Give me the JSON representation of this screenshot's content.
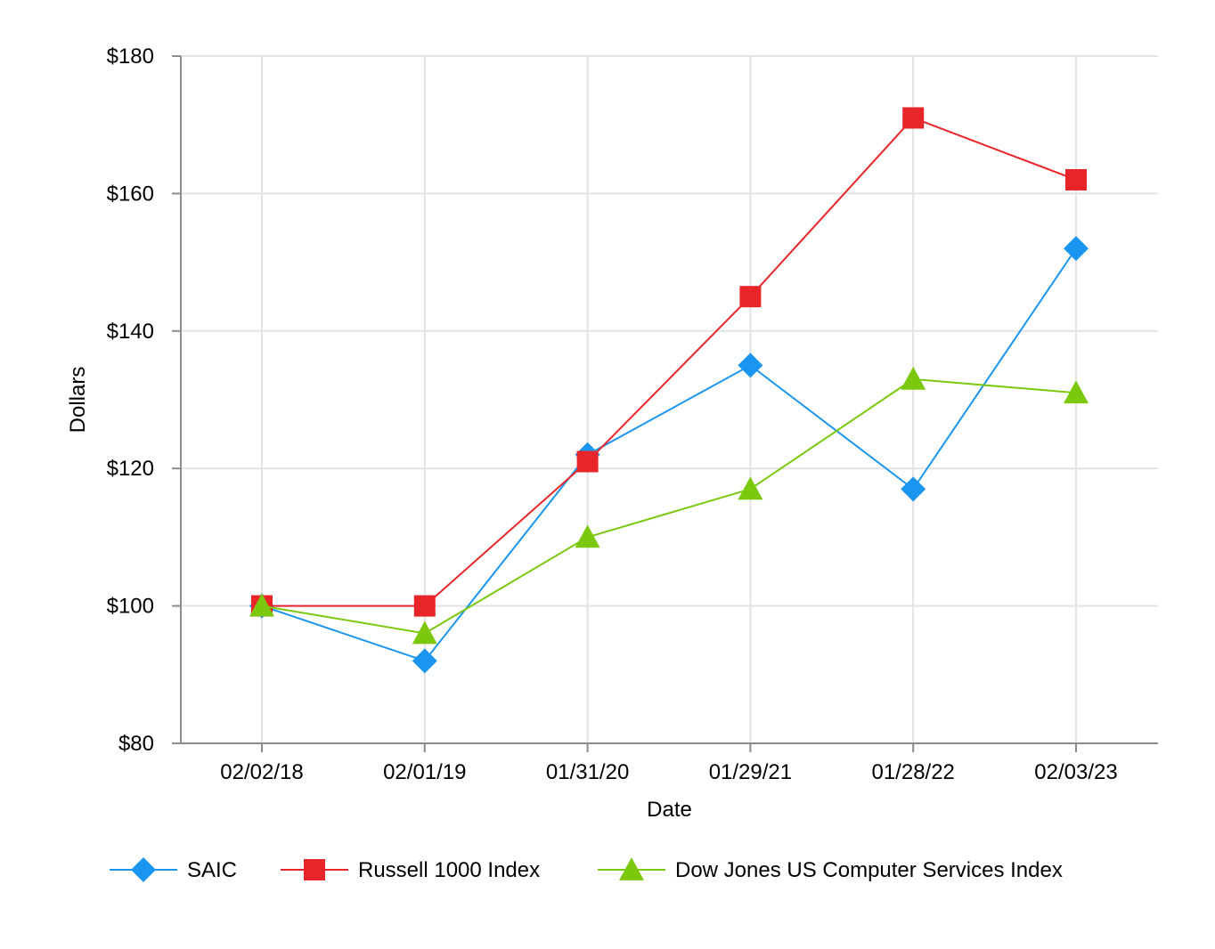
{
  "chart_data": {
    "type": "line",
    "title": "",
    "xlabel": "Date",
    "ylabel": "Dollars",
    "categories": [
      "02/02/18",
      "02/01/19",
      "01/31/20",
      "01/29/21",
      "01/28/22",
      "02/03/23"
    ],
    "ylim": [
      80,
      180
    ],
    "yticks": [
      80,
      100,
      120,
      140,
      160,
      180
    ],
    "ytick_labels": [
      "$80",
      "$100",
      "$120",
      "$140",
      "$160",
      "$180"
    ],
    "grid": true,
    "legend_position": "bottom",
    "series": [
      {
        "name": "SAIC",
        "marker": "diamond",
        "color": "#1a96f0",
        "values": [
          100,
          92,
          122,
          135,
          117,
          152
        ]
      },
      {
        "name": "Russell 1000 Index",
        "marker": "square",
        "color": "#e8262a",
        "values": [
          100,
          100,
          121,
          145,
          171,
          162
        ]
      },
      {
        "name": "Dow Jones US Computer Services Index",
        "marker": "triangle",
        "color": "#7cc80f",
        "values": [
          100,
          96,
          110,
          117,
          133,
          131
        ]
      }
    ]
  }
}
